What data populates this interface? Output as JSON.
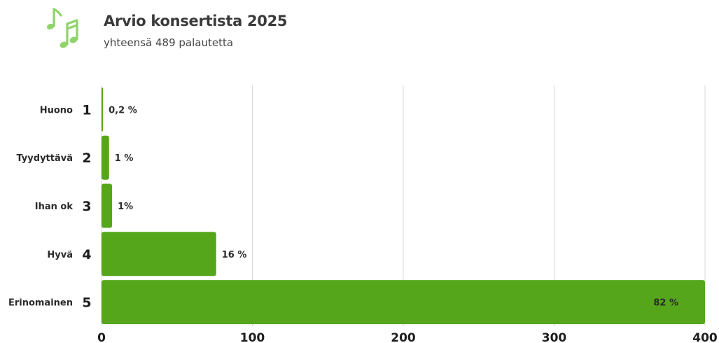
{
  "header": {
    "title": "Arvio konsertista 2025",
    "subtitle": "yhteensä 489 palautetta",
    "logo_icon": "music-notes-icon"
  },
  "colors": {
    "bar": "#56a61c",
    "logo": "#8fd36b",
    "grid": "#d9d9d9"
  },
  "chart_data": {
    "type": "bar",
    "orientation": "horizontal",
    "categories": [
      "Huono",
      "Tyydyttävä",
      "Ihan ok",
      "Hyvä",
      "Erinomainen"
    ],
    "category_numbers": [
      "1",
      "2",
      "3",
      "4",
      "5"
    ],
    "values": [
      1,
      5,
      7,
      76,
      400
    ],
    "data_labels": [
      "0,2 %",
      "1 %",
      "1%",
      "16 %",
      "82 %"
    ],
    "xlim": [
      0,
      400
    ],
    "xticks": [
      0,
      100,
      200,
      300,
      400
    ],
    "grid": true,
    "legend": "none"
  }
}
